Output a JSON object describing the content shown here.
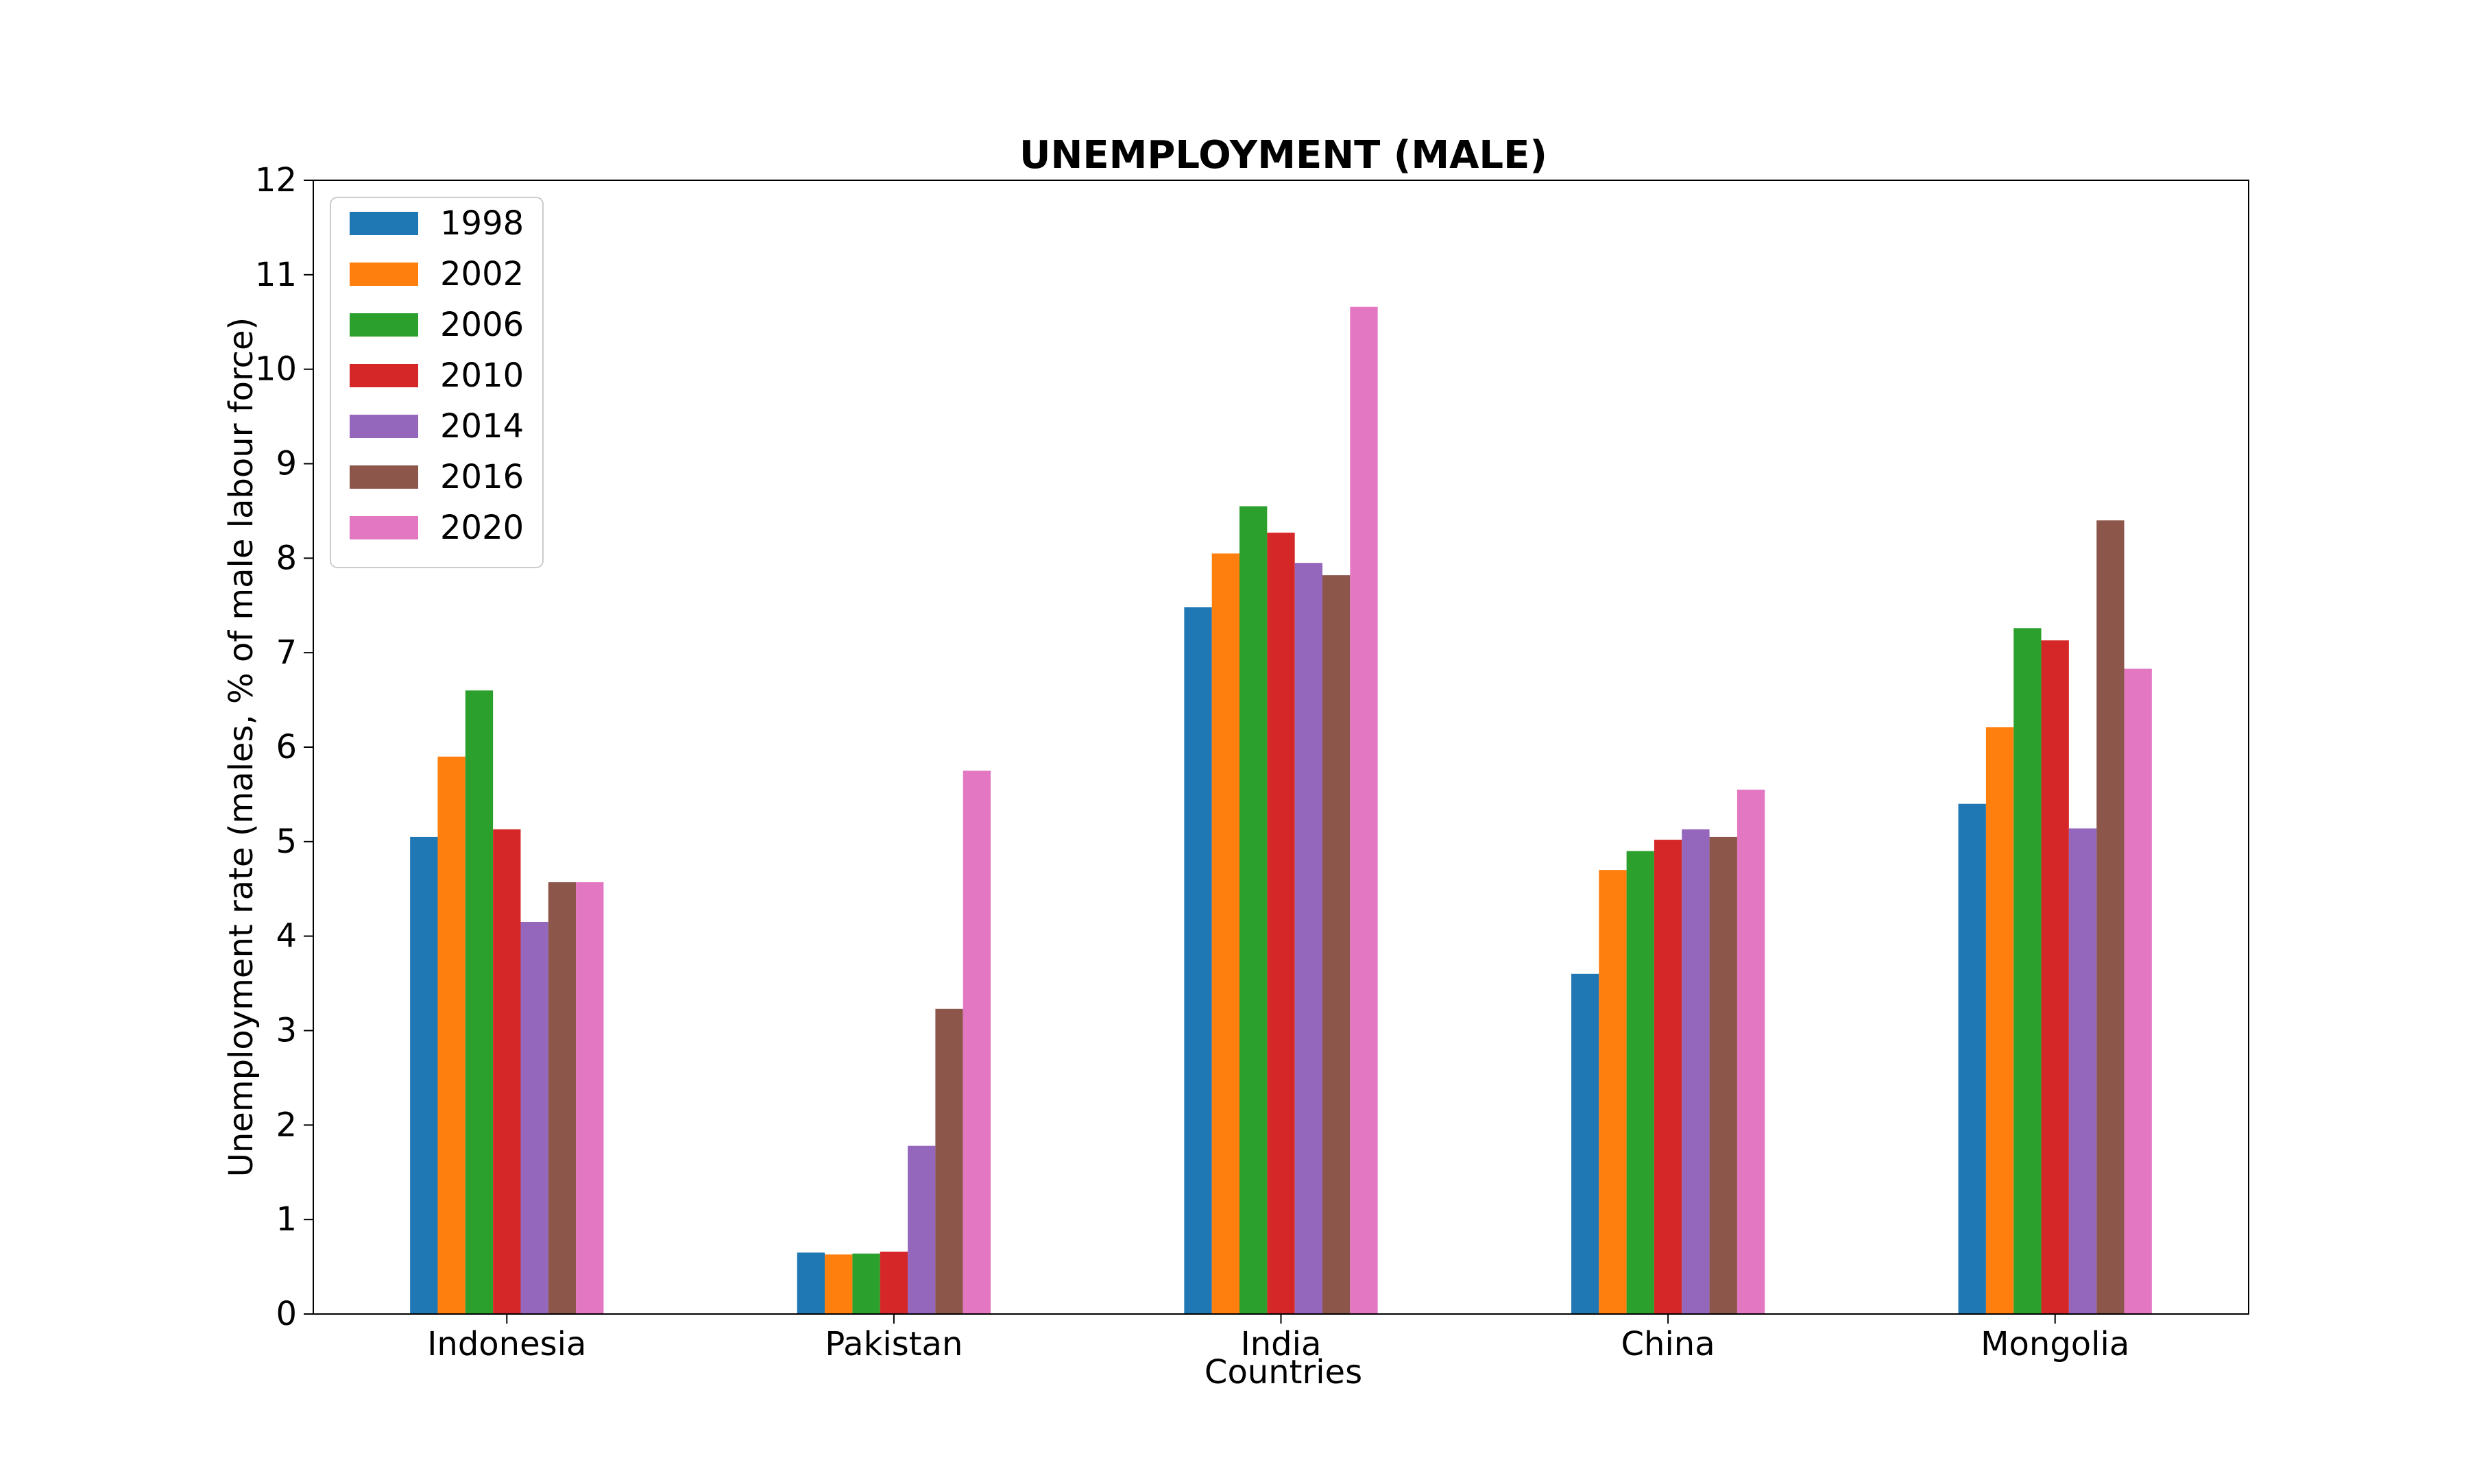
{
  "chart_data": {
    "type": "bar",
    "title": "UNEMPLOYMENT (MALE)",
    "xlabel": "Countries",
    "ylabel": "Unemployment rate (males, % of male labour force)",
    "ylim": [
      0,
      12
    ],
    "yticks": [
      0,
      1,
      2,
      3,
      4,
      5,
      6,
      7,
      8,
      9,
      10,
      11,
      12
    ],
    "grid": false,
    "legend_position": "top-left",
    "categories": [
      "Indonesia",
      "Pakistan",
      "India",
      "China",
      "Mongolia"
    ],
    "series": [
      {
        "name": "1998",
        "color": "#1f77b4",
        "values": [
          5.05,
          0.65,
          7.48,
          3.6,
          5.4
        ]
      },
      {
        "name": "2002",
        "color": "#ff7f0e",
        "values": [
          5.9,
          0.63,
          8.05,
          4.7,
          6.21
        ]
      },
      {
        "name": "2006",
        "color": "#2ca02c",
        "values": [
          6.6,
          0.64,
          8.55,
          4.9,
          7.26
        ]
      },
      {
        "name": "2010",
        "color": "#d62728",
        "values": [
          5.13,
          0.66,
          8.27,
          5.02,
          7.13
        ]
      },
      {
        "name": "2014",
        "color": "#9467bd",
        "values": [
          4.15,
          1.78,
          7.95,
          5.13,
          5.14
        ]
      },
      {
        "name": "2016",
        "color": "#8c564b",
        "values": [
          4.57,
          3.23,
          7.82,
          5.05,
          8.4
        ]
      },
      {
        "name": "2020",
        "color": "#e377c2",
        "values": [
          4.57,
          5.75,
          10.66,
          5.55,
          6.83
        ]
      }
    ]
  }
}
